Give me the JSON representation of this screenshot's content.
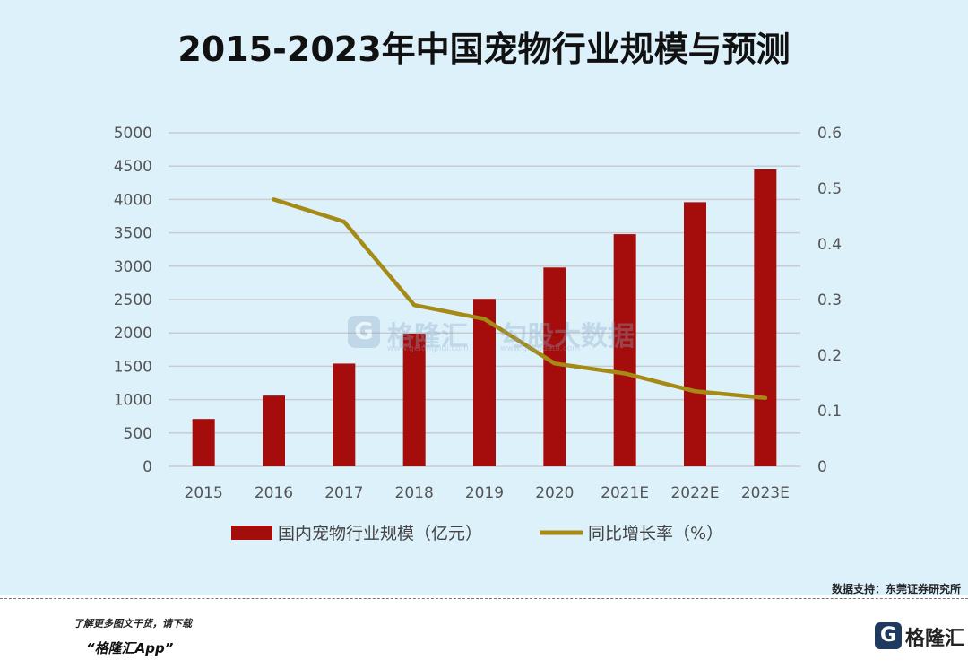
{
  "chart_data": {
    "type": "bar+line",
    "title": "2015-2023年中国宠物行业规模与预测",
    "categories": [
      "2015",
      "2016",
      "2017",
      "2018",
      "2019",
      "2020",
      "2021E",
      "2022E",
      "2023E"
    ],
    "series": [
      {
        "name": "国内宠物行业规模（亿元）",
        "type": "bar",
        "axis": "left",
        "color": "#a50d0d",
        "values": [
          710,
          1060,
          1540,
          1990,
          2510,
          2980,
          3480,
          3960,
          4450
        ]
      },
      {
        "name": "同比增长率（%）",
        "type": "line",
        "axis": "right",
        "color": "#a58a16",
        "values": [
          null,
          0.48,
          0.44,
          0.29,
          0.265,
          0.185,
          0.167,
          0.135,
          0.123
        ]
      }
    ],
    "y_left": {
      "min": 0,
      "max": 5000,
      "ticks": [
        "0",
        "500",
        "1000",
        "1500",
        "2000",
        "2500",
        "3000",
        "3500",
        "4000",
        "4500",
        "5000"
      ]
    },
    "y_right": {
      "min": 0,
      "max": 0.6,
      "ticks": [
        "0",
        "0.1",
        "0.2",
        "0.3",
        "0.4",
        "0.5",
        "0.6"
      ]
    },
    "grid": true,
    "legend_position": "bottom"
  },
  "watermark": {
    "icon": "G",
    "brand": "格隆汇",
    "brand_url": "www.gelonghui.com",
    "sub": "勾股大数据",
    "sub_url": "www.gogudata.com"
  },
  "source_note": "数据支持：东莞证券研究所",
  "footer": {
    "line1": "了解更多图文干货，请下载",
    "line2": "“格隆汇App”",
    "logo_icon": "G",
    "logo_text": "格隆汇"
  }
}
